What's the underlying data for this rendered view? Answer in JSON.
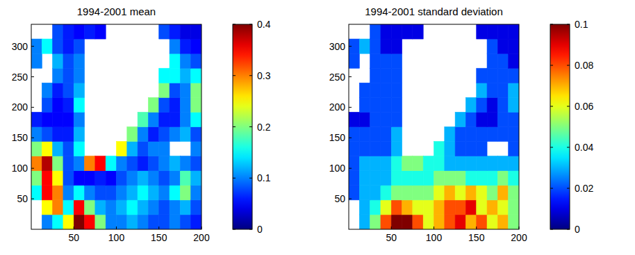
{
  "chart_data": [
    {
      "type": "heatmap",
      "title": "1994-2001 mean",
      "color": "jet",
      "xlim": [
        0,
        200
      ],
      "ylim": [
        0,
        336
      ],
      "xticks": [
        50,
        100,
        150,
        200
      ],
      "yticks": [
        50,
        100,
        150,
        200,
        250,
        300
      ],
      "x_edges": [
        0,
        12.5,
        25,
        37.5,
        50,
        62.5,
        75,
        87.5,
        100,
        112.5,
        125,
        137.5,
        150,
        162.5,
        175,
        187.5,
        200
      ],
      "y_edges": [
        0,
        24,
        48,
        72,
        96,
        120,
        144,
        168,
        192,
        216,
        240,
        264,
        288,
        312,
        336
      ],
      "z": [
        [
          null,
          0.1,
          0.15,
          0.25,
          0.4,
          0.35,
          0.2,
          0.1,
          0.1,
          0.12,
          0.1,
          0.08,
          0.08,
          0.1,
          0.08,
          0.06
        ],
        [
          null,
          0.25,
          0.3,
          0.15,
          0.35,
          0.2,
          0.12,
          0.1,
          0.12,
          0.15,
          0.12,
          0.1,
          0.08,
          0.1,
          0.12,
          0.08
        ],
        [
          0.15,
          0.35,
          0.3,
          0.1,
          0.15,
          0.1,
          0.08,
          0.08,
          0.1,
          0.12,
          0.15,
          0.12,
          0.1,
          0.15,
          0.2,
          0.1
        ],
        [
          0.2,
          0.35,
          0.25,
          0.08,
          0.05,
          0.05,
          0.06,
          0.05,
          0.08,
          0.1,
          0.12,
          0.1,
          0.08,
          0.1,
          0.18,
          0.12
        ],
        [
          0.3,
          0.38,
          0.2,
          0.08,
          0.1,
          0.3,
          0.35,
          0.15,
          0.1,
          0.08,
          0.06,
          0.08,
          0.1,
          0.12,
          0.1,
          0.08
        ],
        [
          0.2,
          0.25,
          0.12,
          0.08,
          0.15,
          null,
          null,
          null,
          0.25,
          0.12,
          0.08,
          0.1,
          0.1,
          null,
          null,
          0.1
        ],
        [
          0.1,
          0.08,
          0.06,
          0.06,
          0.12,
          null,
          null,
          null,
          null,
          0.2,
          0.1,
          0.06,
          0.08,
          0.1,
          0.12,
          0.08
        ],
        [
          0.06,
          0.05,
          0.05,
          0.05,
          0.1,
          null,
          null,
          null,
          null,
          null,
          0.18,
          0.1,
          0.06,
          0.06,
          0.1,
          0.15
        ],
        [
          null,
          0.08,
          0.05,
          0.06,
          0.15,
          null,
          null,
          null,
          null,
          null,
          null,
          0.2,
          0.08,
          0.06,
          0.1,
          0.2
        ],
        [
          null,
          0.1,
          0.06,
          0.08,
          0.12,
          null,
          null,
          null,
          null,
          null,
          null,
          null,
          0.2,
          0.08,
          0.1,
          0.2
        ],
        [
          null,
          null,
          0.1,
          0.08,
          0.1,
          null,
          null,
          null,
          null,
          null,
          null,
          null,
          0.15,
          0.15,
          0.12,
          0.15
        ],
        [
          0.1,
          null,
          0.12,
          0.08,
          0.1,
          null,
          null,
          null,
          null,
          null,
          null,
          null,
          null,
          0.15,
          0.1,
          0.08
        ],
        [
          0.1,
          0.15,
          0.08,
          0.06,
          0.08,
          null,
          null,
          null,
          null,
          null,
          null,
          null,
          null,
          0.1,
          0.06,
          0.05
        ],
        [
          null,
          null,
          0.08,
          0.06,
          0.05,
          0.06,
          0.05,
          null,
          null,
          null,
          null,
          null,
          0.08,
          0.06,
          0.04,
          0.04
        ]
      ],
      "colorbar": {
        "range": [
          0,
          0.4
        ],
        "ticks": [
          0,
          0.1,
          0.2,
          0.3,
          0.4
        ]
      }
    },
    {
      "type": "heatmap",
      "title": "1994-2001 standard deviation",
      "color": "jet",
      "xlim": [
        0,
        200
      ],
      "ylim": [
        0,
        336
      ],
      "xticks": [
        50,
        100,
        150,
        200
      ],
      "yticks": [
        50,
        100,
        150,
        200,
        250,
        300
      ],
      "x_edges": [
        0,
        12.5,
        25,
        37.5,
        50,
        62.5,
        75,
        87.5,
        100,
        112.5,
        125,
        137.5,
        150,
        162.5,
        175,
        187.5,
        200
      ],
      "y_edges": [
        0,
        24,
        48,
        72,
        96,
        120,
        144,
        168,
        192,
        216,
        240,
        264,
        288,
        312,
        336
      ],
      "z": [
        [
          null,
          0.03,
          0.05,
          0.08,
          0.1,
          0.1,
          0.08,
          0.06,
          0.07,
          0.08,
          0.09,
          0.07,
          0.08,
          0.06,
          0.07,
          0.05
        ],
        [
          null,
          0.03,
          0.04,
          0.06,
          0.08,
          0.07,
          0.06,
          0.06,
          0.07,
          0.08,
          0.08,
          0.09,
          0.06,
          0.07,
          0.06,
          0.05
        ],
        [
          0.02,
          0.03,
          0.03,
          0.04,
          0.05,
          0.05,
          0.05,
          0.05,
          0.06,
          0.07,
          0.06,
          0.07,
          0.06,
          0.05,
          0.07,
          0.05
        ],
        [
          0.02,
          0.03,
          0.03,
          0.03,
          0.04,
          0.04,
          0.04,
          0.04,
          0.05,
          0.05,
          0.05,
          0.04,
          0.04,
          0.04,
          0.05,
          0.04
        ],
        [
          0.02,
          0.03,
          0.03,
          0.03,
          0.04,
          0.05,
          0.05,
          0.04,
          0.04,
          0.03,
          0.03,
          0.03,
          0.03,
          0.03,
          0.03,
          0.03
        ],
        [
          0.02,
          0.02,
          0.02,
          0.02,
          0.03,
          null,
          null,
          null,
          0.04,
          0.03,
          0.02,
          0.02,
          0.02,
          null,
          null,
          0.02
        ],
        [
          0.02,
          0.02,
          0.02,
          0.02,
          0.03,
          null,
          null,
          null,
          null,
          0.03,
          0.02,
          0.02,
          0.02,
          0.02,
          0.02,
          0.02
        ],
        [
          0.01,
          0.01,
          0.02,
          0.02,
          0.02,
          null,
          null,
          null,
          null,
          null,
          0.03,
          0.02,
          0.01,
          0.01,
          0.02,
          0.02
        ],
        [
          null,
          0.02,
          0.02,
          0.02,
          0.02,
          null,
          null,
          null,
          null,
          null,
          null,
          0.03,
          0.02,
          0.01,
          0.02,
          0.03
        ],
        [
          null,
          0.02,
          0.02,
          0.02,
          0.02,
          null,
          null,
          null,
          null,
          null,
          null,
          null,
          0.03,
          0.02,
          0.02,
          0.03
        ],
        [
          null,
          null,
          0.02,
          0.02,
          0.02,
          null,
          null,
          null,
          null,
          null,
          null,
          null,
          0.02,
          0.02,
          0.02,
          0.02
        ],
        [
          0.02,
          null,
          0.02,
          0.02,
          0.02,
          null,
          null,
          null,
          null,
          null,
          null,
          null,
          null,
          0.02,
          0.02,
          0.01
        ],
        [
          0.02,
          0.03,
          0.02,
          0.01,
          0.01,
          null,
          null,
          null,
          null,
          null,
          null,
          null,
          null,
          0.02,
          0.01,
          0.01
        ],
        [
          null,
          null,
          0.02,
          0.01,
          0.01,
          0.01,
          0.01,
          null,
          null,
          null,
          null,
          null,
          0.01,
          0.01,
          0.01,
          0.01
        ]
      ],
      "colorbar": {
        "range": [
          0,
          0.1
        ],
        "ticks": [
          0,
          0.02,
          0.04,
          0.06,
          0.08,
          0.1
        ]
      }
    }
  ]
}
